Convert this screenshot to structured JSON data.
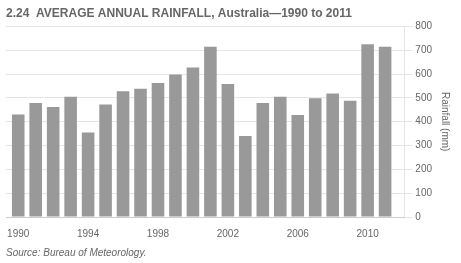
{
  "chart_data": {
    "type": "bar",
    "title": "2.24  AVERAGE ANNUAL RAINFALL, Australia—1990 to 2011",
    "y_label": "Rainfall (mm)",
    "annotations": [
      "Source: Bureau of Meteorology."
    ],
    "x": [
      1990,
      1991,
      1992,
      1993,
      1994,
      1995,
      1996,
      1997,
      1998,
      1999,
      2000,
      2001,
      2002,
      2003,
      2004,
      2005,
      2006,
      2007,
      2008,
      2009,
      2010,
      2011
    ],
    "values": [
      430,
      478,
      462,
      505,
      355,
      472,
      528,
      538,
      562,
      598,
      628,
      715,
      558,
      340,
      478,
      505,
      428,
      498,
      518,
      488,
      725,
      715
    ],
    "color": "#999999",
    "xlim": [
      1989.3,
      2012.1
    ],
    "xticks": [
      1990,
      1994,
      1998,
      2002,
      2006,
      2010
    ],
    "ylim": [
      0,
      800
    ],
    "yticks": [
      0,
      100,
      200,
      300,
      400,
      500,
      600,
      700,
      800
    ],
    "grid": true
  }
}
